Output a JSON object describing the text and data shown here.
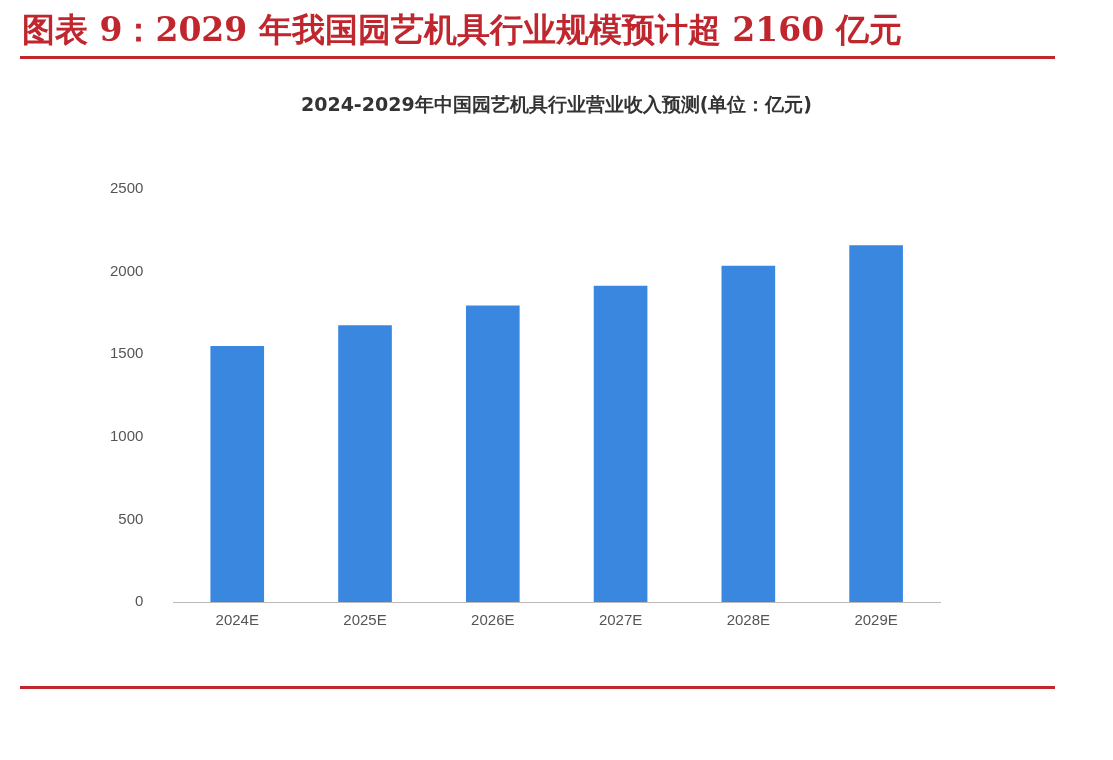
{
  "chart_data": {
    "type": "bar",
    "title": "图表 9：2029 年我国园艺机具行业规模预计超 2160 亿元",
    "subtitle": "2024-2029年中国园艺机具行业营业收入预测(单位：亿元)",
    "categories": [
      "2024E",
      "2025E",
      "2026E",
      "2027E",
      "2028E",
      "2029E"
    ],
    "values": [
      1550,
      1675,
      1795,
      1915,
      2035,
      2160
    ],
    "color": "#3a87e0",
    "ylim": [
      0,
      2500
    ],
    "yticks": [
      0,
      500,
      1000,
      1500,
      2000,
      2500
    ],
    "grid": false,
    "legend": false
  }
}
